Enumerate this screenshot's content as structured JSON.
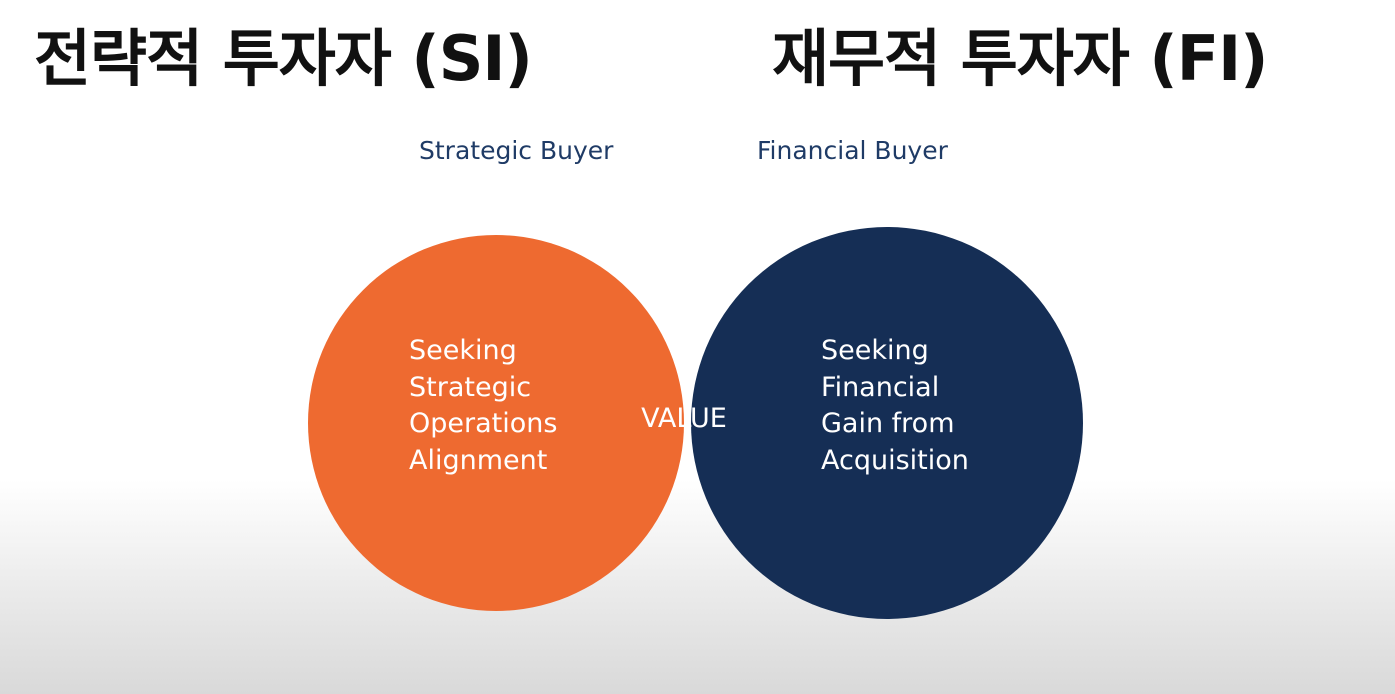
{
  "headings": {
    "left": "전략적 투자자 (SI)",
    "right": "재무적 투자자 (FI)"
  },
  "venn": {
    "left": {
      "label": "Strategic Buyer",
      "text_lines": [
        "Seeking",
        "Strategic",
        "Operations",
        "Alignment"
      ]
    },
    "right": {
      "label": "Financial Buyer",
      "text_lines": [
        "Seeking",
        "Financial",
        "Gain from",
        "Acquisition"
      ]
    },
    "overlap": {
      "text": "VALUE"
    }
  },
  "colors": {
    "left_circle": "#EE6A30",
    "right_circle": "#152E55",
    "overlap": "#2E8595",
    "label_text": "#1F3B66",
    "circle_text": "#FFFFFF",
    "heading_text": "#111111"
  }
}
